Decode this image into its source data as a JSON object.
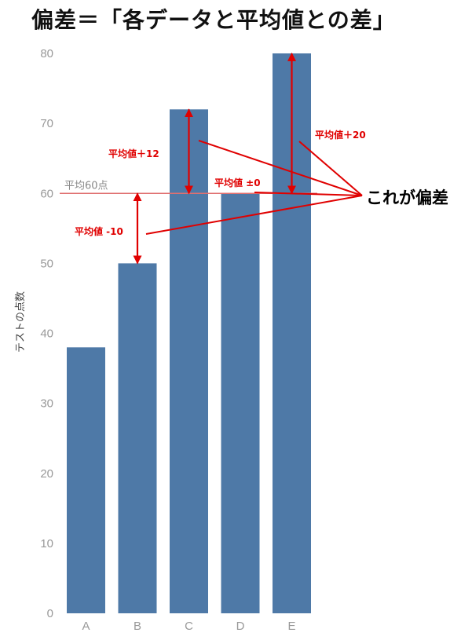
{
  "page_title": "偏差＝「各データと平均値との差」",
  "chart_data": {
    "type": "bar",
    "categories": [
      "A",
      "B",
      "C",
      "D",
      "E"
    ],
    "values": [
      38,
      50,
      72,
      60,
      80
    ],
    "ylabel": "テストの点数",
    "xlabel": "",
    "ylim": [
      0,
      80
    ],
    "yticks": [
      0,
      10,
      20,
      30,
      40,
      50,
      60,
      70,
      80
    ],
    "grid": false,
    "bar_color": "#4e79a7",
    "mean": {
      "value": 60,
      "label": "平均60点",
      "color": "#e07070"
    },
    "deviation_annotations": [
      {
        "category": "B",
        "label": "平均値 -10"
      },
      {
        "category": "C",
        "label": "平均値＋12"
      },
      {
        "category": "D",
        "label": "平均値 ±0"
      },
      {
        "category": "E",
        "label": "平均値＋20"
      }
    ],
    "callout": "これが偏差",
    "annotation_color": "#e00000"
  }
}
